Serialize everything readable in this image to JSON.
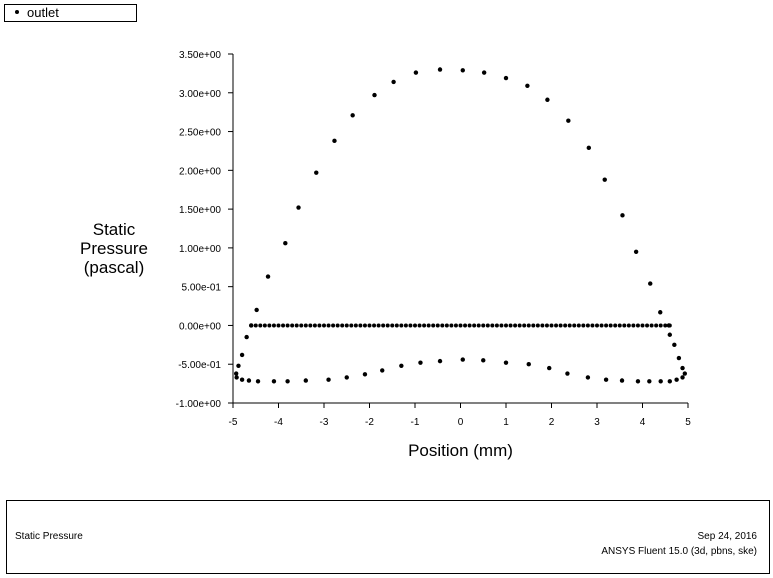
{
  "legend": {
    "label": "outlet"
  },
  "footer": {
    "left_title": "Static Pressure",
    "date": "Sep 24, 2016",
    "app": "ANSYS Fluent 15.0 (3d, pbns, ske)"
  },
  "chart_data": {
    "type": "scatter",
    "title": "",
    "xlabel": "Position (mm)",
    "ylabel_lines": [
      "Static",
      "Pressure",
      "(pascal)"
    ],
    "xlim": [
      -5,
      5
    ],
    "ylim": [
      -1.0,
      3.5
    ],
    "xticks": [
      -5,
      -4,
      -3,
      -2,
      -1,
      0,
      1,
      2,
      3,
      4,
      5
    ],
    "xtick_labels": [
      "-5",
      "-4",
      "-3",
      "-2",
      "-1",
      "0",
      "1",
      "2",
      "3",
      "4",
      "5"
    ],
    "yticks": [
      -1.0,
      -0.5,
      0,
      0.5,
      1.0,
      1.5,
      2.0,
      2.5,
      3.0,
      3.5
    ],
    "ytick_labels": [
      "-1.00e+00",
      "-5.00e-01",
      "0.00e+00",
      "5.00e-01",
      "1.00e+00",
      "1.50e+00",
      "2.00e+00",
      "2.50e+00",
      "3.00e+00",
      "3.50e+00"
    ],
    "grid": false,
    "series": [
      {
        "name": "outlet",
        "zero_line": {
          "x_start": -4.6,
          "x_end": 4.6,
          "y": 0,
          "count": 93
        },
        "points": [
          [
            -4.6,
            0.0
          ],
          [
            -4.48,
            0.2
          ],
          [
            -4.23,
            0.63
          ],
          [
            -3.85,
            1.06
          ],
          [
            -3.56,
            1.52
          ],
          [
            -3.17,
            1.97
          ],
          [
            -2.77,
            2.38
          ],
          [
            -2.37,
            2.71
          ],
          [
            -1.89,
            2.97
          ],
          [
            -1.47,
            3.14
          ],
          [
            -0.98,
            3.26
          ],
          [
            -0.45,
            3.3
          ],
          [
            0.05,
            3.29
          ],
          [
            0.52,
            3.26
          ],
          [
            1.0,
            3.19
          ],
          [
            1.47,
            3.09
          ],
          [
            1.91,
            2.91
          ],
          [
            2.37,
            2.64
          ],
          [
            2.82,
            2.29
          ],
          [
            3.17,
            1.88
          ],
          [
            3.56,
            1.42
          ],
          [
            3.86,
            0.95
          ],
          [
            4.17,
            0.54
          ],
          [
            4.39,
            0.17
          ],
          [
            4.58,
            0.0
          ],
          [
            -4.7,
            -0.15
          ],
          [
            -4.8,
            -0.38
          ],
          [
            -4.88,
            -0.52
          ],
          [
            -4.93,
            -0.62
          ],
          [
            -4.92,
            -0.67
          ],
          [
            -4.8,
            -0.7
          ],
          [
            -4.65,
            -0.71
          ],
          [
            -4.45,
            -0.72
          ],
          [
            -4.1,
            -0.72
          ],
          [
            -3.8,
            -0.72
          ],
          [
            -3.4,
            -0.71
          ],
          [
            -2.9,
            -0.7
          ],
          [
            -2.5,
            -0.67
          ],
          [
            -2.1,
            -0.63
          ],
          [
            -1.72,
            -0.58
          ],
          [
            -1.3,
            -0.52
          ],
          [
            -0.88,
            -0.48
          ],
          [
            -0.45,
            -0.46
          ],
          [
            0.05,
            -0.44
          ],
          [
            0.5,
            -0.45
          ],
          [
            1.0,
            -0.48
          ],
          [
            1.5,
            -0.5
          ],
          [
            1.95,
            -0.55
          ],
          [
            2.35,
            -0.62
          ],
          [
            2.8,
            -0.67
          ],
          [
            3.2,
            -0.7
          ],
          [
            3.55,
            -0.71
          ],
          [
            3.9,
            -0.72
          ],
          [
            4.15,
            -0.72
          ],
          [
            4.4,
            -0.72
          ],
          [
            4.6,
            -0.72
          ],
          [
            4.75,
            -0.7
          ],
          [
            4.88,
            -0.67
          ],
          [
            4.93,
            -0.62
          ],
          [
            4.88,
            -0.55
          ],
          [
            4.8,
            -0.42
          ],
          [
            4.7,
            -0.25
          ],
          [
            4.6,
            -0.12
          ]
        ]
      }
    ]
  }
}
